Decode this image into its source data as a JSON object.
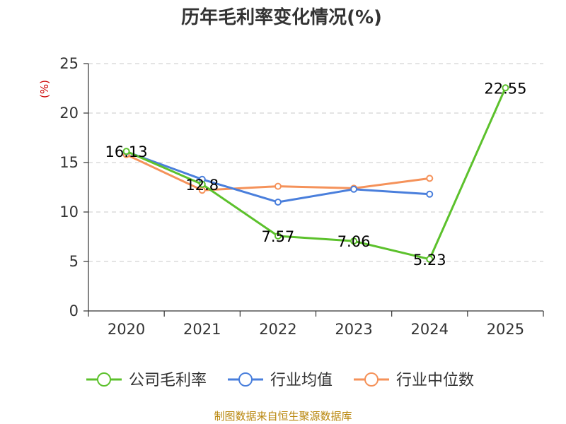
{
  "chart_data": {
    "type": "line",
    "title": "历年毛利率变化情况(%)",
    "ylabel": "(%)",
    "xlabel": "",
    "categories": [
      "2020",
      "2021",
      "2022",
      "2023",
      "2024",
      "2025"
    ],
    "ylim": [
      0,
      25
    ],
    "yticks": [
      0,
      5,
      10,
      15,
      20,
      25
    ],
    "grid": true,
    "legend_position": "bottom",
    "series": [
      {
        "name": "公司毛利率",
        "color": "#5cc12c",
        "values": [
          16.13,
          12.8,
          7.57,
          7.06,
          5.23,
          22.55
        ],
        "labels": [
          "16.13",
          "12.8",
          "7.57",
          "7.06",
          "5.23",
          "22.55"
        ]
      },
      {
        "name": "行业均值",
        "color": "#4a7fdc",
        "values": [
          16.1,
          13.3,
          11.0,
          12.3,
          11.8,
          null
        ],
        "labels": null
      },
      {
        "name": "行业中位数",
        "color": "#f5925a",
        "values": [
          15.8,
          12.2,
          12.6,
          12.4,
          13.4,
          null
        ],
        "labels": null
      }
    ]
  },
  "footer": {
    "source": "制图数据来自恒生聚源数据库"
  }
}
